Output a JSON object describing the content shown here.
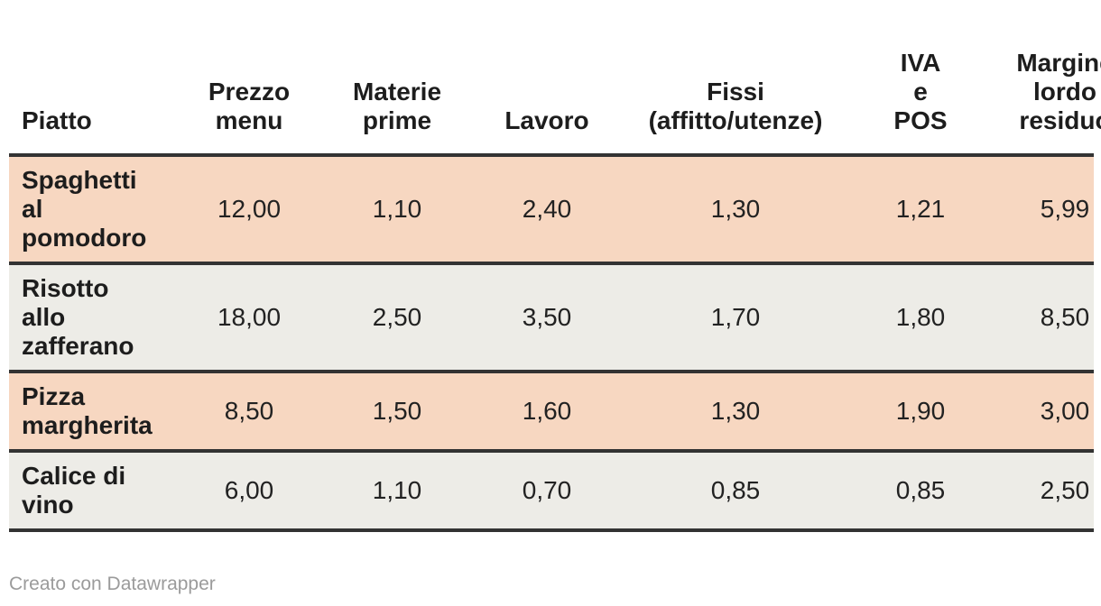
{
  "table": {
    "columns": [
      {
        "id": "piatto",
        "label": "Piatto",
        "align": "left"
      },
      {
        "id": "prezzo",
        "label": "Prezzo\nmenu",
        "align": "center"
      },
      {
        "id": "materie",
        "label": "Materie\nprime",
        "align": "center"
      },
      {
        "id": "lavoro",
        "label": "Lavoro",
        "align": "center"
      },
      {
        "id": "fissi",
        "label": "Fissi\n(affitto/utenze)",
        "align": "center"
      },
      {
        "id": "iva",
        "label": "IVA\ne\nPOS",
        "align": "center"
      },
      {
        "id": "margine",
        "label": "Margine\nlordo\nresiduo",
        "align": "center"
      }
    ],
    "rows": [
      {
        "name": "Spaghetti\nal\npomodoro",
        "values": [
          "12,00",
          "1,10",
          "2,40",
          "1,30",
          "1,21",
          "5,99"
        ]
      },
      {
        "name": "Risotto\nallo\nzafferano",
        "values": [
          "18,00",
          "2,50",
          "3,50",
          "1,70",
          "1,80",
          "8,50"
        ]
      },
      {
        "name": "Pizza\nmargherita",
        "values": [
          "8,50",
          "1,50",
          "1,60",
          "1,30",
          "1,90",
          "3,00"
        ]
      },
      {
        "name": "Calice di\nvino",
        "values": [
          "6,00",
          "1,10",
          "0,70",
          "0,85",
          "0,85",
          "2,50"
        ]
      }
    ]
  },
  "footer": {
    "credit": "Creato con Datawrapper"
  },
  "colors": {
    "row_peach": "#f7d7c1",
    "row_gray": "#edece7",
    "border": "#333333",
    "text_strong": "#1d1d1d",
    "text_normal": "#222222",
    "credit": "#9b9b9b"
  },
  "chart_data": {
    "type": "table",
    "columns": [
      "Piatto",
      "Prezzo menu",
      "Materie prime",
      "Lavoro",
      "Fissi (affitto/utenze)",
      "IVA e POS",
      "Margine lordo residuo"
    ],
    "rows": [
      [
        "Spaghetti al pomodoro",
        12.0,
        1.1,
        2.4,
        1.3,
        1.21,
        5.99
      ],
      [
        "Risotto allo zafferano",
        18.0,
        2.5,
        3.5,
        1.7,
        1.8,
        8.5
      ],
      [
        "Pizza margherita",
        8.5,
        1.5,
        1.6,
        1.3,
        1.9,
        3.0
      ],
      [
        "Calice di vino",
        6.0,
        1.1,
        0.7,
        0.85,
        0.85,
        2.5
      ]
    ],
    "number_format": "comma-decimal",
    "row_stripe_colors": [
      "#f7d7c1",
      "#edece7"
    ],
    "title": "",
    "credit": "Creato con Datawrapper"
  }
}
